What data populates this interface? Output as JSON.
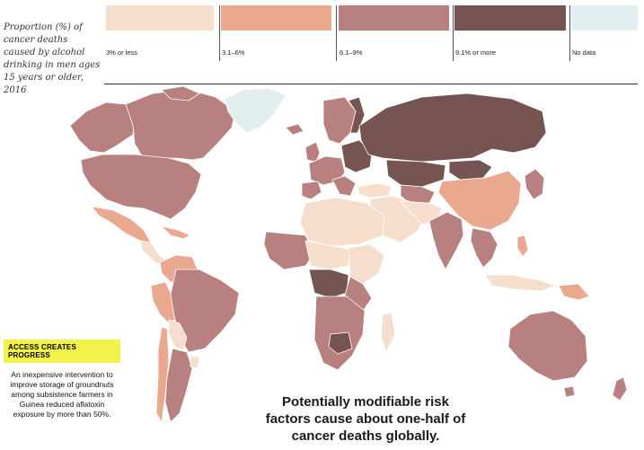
{
  "legend": {
    "title": "Proportion (%) of cancer deaths caused by alcohol drinking in men ages 15 years or older, 2016",
    "items": [
      {
        "label": "3% or less",
        "color": "#f5dfcc"
      },
      {
        "label": "3.1–6%",
        "color": "#eaa88f"
      },
      {
        "label": "6.1–9%",
        "color": "#b98080"
      },
      {
        "label": "9.1% or more",
        "color": "#765452"
      },
      {
        "label": "No data",
        "color": "#e3eef0"
      }
    ]
  },
  "callout": {
    "tag": "ACCESS CREATES PROGRESS",
    "text": "An inexpensive intervention to improve storage of groundnuts among subsistence farmers in Guinea reduced aflatoxin exposure by more than 50%."
  },
  "headline": "Potentially modifiable risk factors cause about one-half of cancer deaths globally."
}
